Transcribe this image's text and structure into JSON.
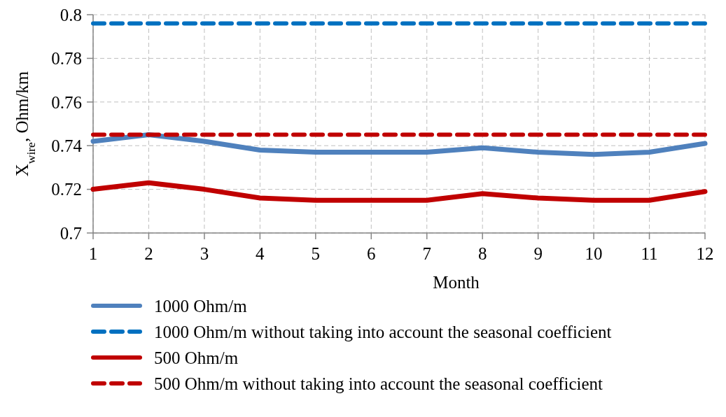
{
  "chart_data": {
    "type": "line",
    "xlabel": "Month",
    "ylabel": "X$_{wire}$, Ohm/km",
    "x": [
      1,
      2,
      3,
      4,
      5,
      6,
      7,
      8,
      9,
      10,
      11,
      12
    ],
    "xlim": [
      1,
      12
    ],
    "xticks": [
      1,
      2,
      3,
      4,
      5,
      6,
      7,
      8,
      9,
      10,
      11,
      12
    ],
    "ylim": [
      0.7,
      0.8
    ],
    "yticks": [
      0.7,
      0.72,
      0.74,
      0.76,
      0.78,
      0.8
    ],
    "grid": true,
    "legend": "bottom",
    "marker": "none",
    "series": [
      {
        "name": "1000 Ohm/m",
        "color": "#4f81bd",
        "line_style": "solid",
        "values": [
          0.742,
          0.745,
          0.742,
          0.738,
          0.737,
          0.737,
          0.737,
          0.739,
          0.737,
          0.736,
          0.737,
          0.741
        ]
      },
      {
        "name": "1000 Ohm/m without taking into account the seasonal coefficient",
        "color": "#0070c0",
        "line_style": "dashed",
        "values": [
          0.796,
          0.796,
          0.796,
          0.796,
          0.796,
          0.796,
          0.796,
          0.796,
          0.796,
          0.796,
          0.796,
          0.796
        ]
      },
      {
        "name": "500 Ohm/m",
        "color": "#c00000",
        "line_style": "solid",
        "values": [
          0.72,
          0.723,
          0.72,
          0.716,
          0.715,
          0.715,
          0.715,
          0.718,
          0.716,
          0.715,
          0.715,
          0.719
        ]
      },
      {
        "name": "500 Ohm/m without taking into account the seasonal coefficient",
        "color": "#c00000",
        "line_style": "dashed",
        "values": [
          0.745,
          0.745,
          0.745,
          0.745,
          0.745,
          0.745,
          0.745,
          0.745,
          0.745,
          0.745,
          0.745,
          0.745
        ]
      }
    ]
  }
}
